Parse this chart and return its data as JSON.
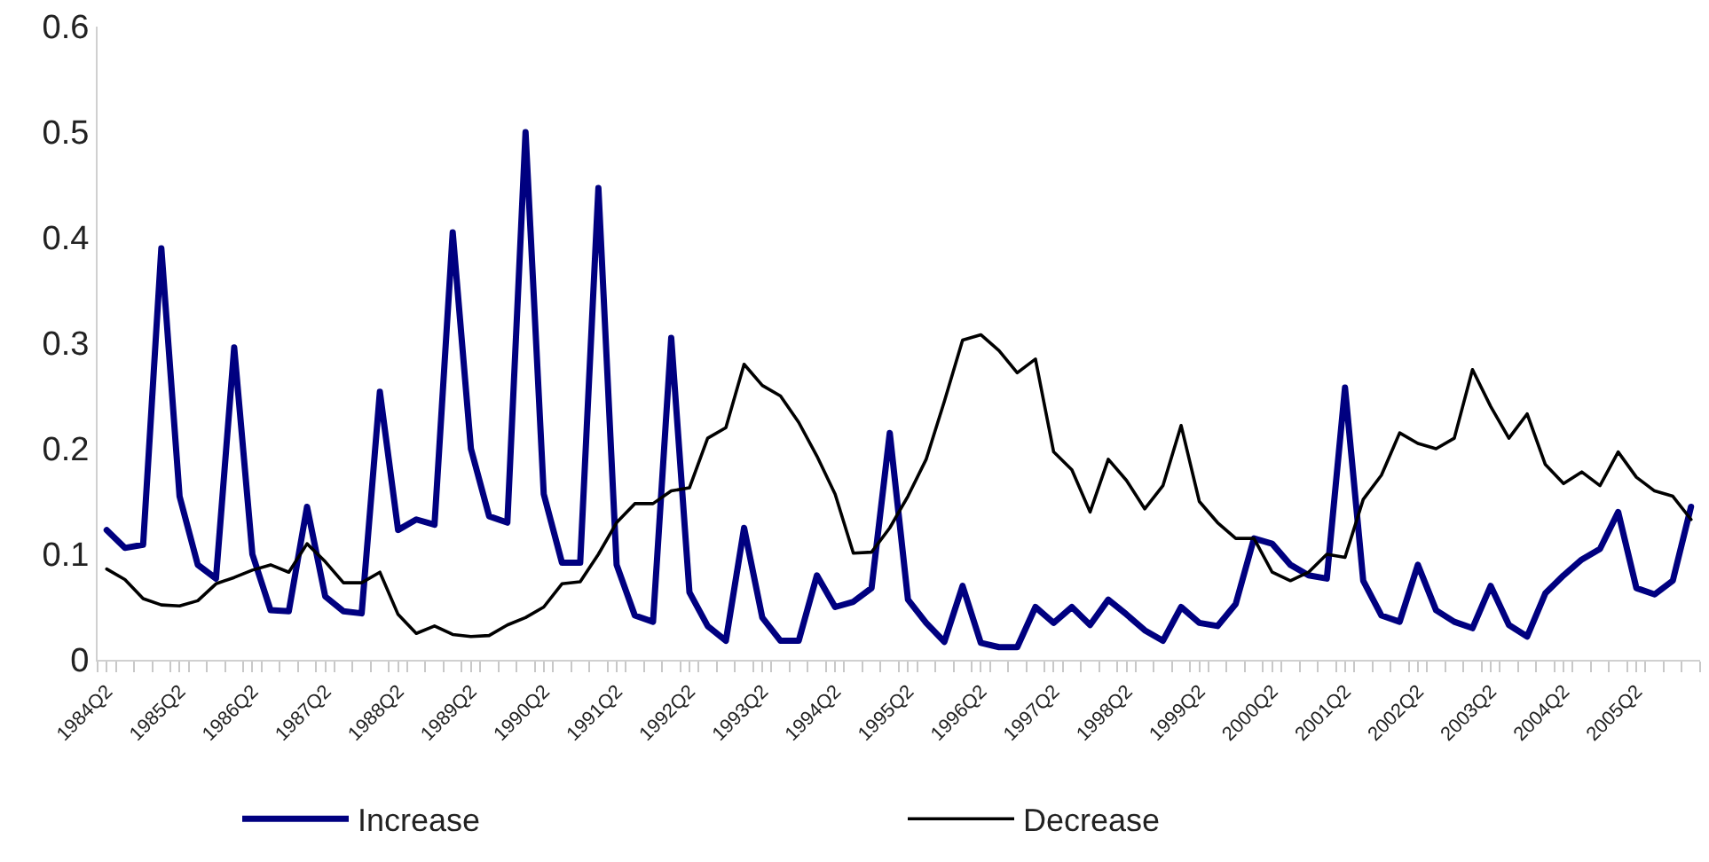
{
  "chart_data": {
    "type": "line",
    "categories": [
      "1984Q2",
      null,
      null,
      null,
      "1985Q2",
      null,
      null,
      null,
      "1986Q2",
      null,
      null,
      null,
      "1987Q2",
      null,
      null,
      null,
      "1988Q2",
      null,
      null,
      null,
      "1989Q2",
      null,
      null,
      null,
      "1990Q2",
      null,
      null,
      null,
      "1991Q2",
      null,
      null,
      null,
      "1992Q2",
      null,
      null,
      null,
      "1993Q2",
      null,
      null,
      null,
      "1994Q2",
      null,
      null,
      null,
      "1995Q2",
      null,
      null,
      null,
      "1996Q2",
      null,
      null,
      null,
      "1997Q2",
      null,
      null,
      null,
      "1998Q2",
      null,
      null,
      null,
      "1999Q2",
      null,
      null,
      null,
      "2000Q2",
      null,
      null,
      null,
      "2001Q2",
      null,
      null,
      null,
      "2002Q2",
      null,
      null,
      null,
      "2003Q2",
      null,
      null,
      null,
      "2004Q2",
      null,
      null,
      null,
      "2005Q2",
      null,
      null,
      null
    ],
    "series": [
      {
        "name": "Increase",
        "color": "#000080",
        "values": [
          0.123,
          0.106,
          0.109,
          0.39,
          0.155,
          0.09,
          0.077,
          0.296,
          0.1,
          0.047,
          0.046,
          0.145,
          0.06,
          0.046,
          0.044,
          0.254,
          0.123,
          0.133,
          0.128,
          0.405,
          0.2,
          0.136,
          0.13,
          0.5,
          0.157,
          0.092,
          0.092,
          0.447,
          0.09,
          0.042,
          0.036,
          0.305,
          0.064,
          0.032,
          0.018,
          0.125,
          0.04,
          0.018,
          0.018,
          0.08,
          0.05,
          0.055,
          0.068,
          0.215,
          0.057,
          0.035,
          0.017,
          0.07,
          0.016,
          0.012,
          0.012,
          0.05,
          0.035,
          0.05,
          0.033,
          0.057,
          0.043,
          0.028,
          0.018,
          0.05,
          0.035,
          0.032,
          0.053,
          0.115,
          0.11,
          0.09,
          0.08,
          0.077,
          0.258,
          0.075,
          0.042,
          0.036,
          0.09,
          0.047,
          0.036,
          0.03,
          0.07,
          0.033,
          0.022,
          0.063,
          0.08,
          0.095,
          0.105,
          0.14,
          0.068,
          0.062,
          0.075,
          0.145
        ]
      },
      {
        "name": "Decrease",
        "color": "#000000",
        "values": [
          0.086,
          0.076,
          0.058,
          0.052,
          0.051,
          0.056,
          0.072,
          0.078,
          0.085,
          0.09,
          0.083,
          0.11,
          0.093,
          0.073,
          0.073,
          0.083,
          0.043,
          0.025,
          0.032,
          0.024,
          0.022,
          0.023,
          0.033,
          0.04,
          0.05,
          0.072,
          0.074,
          0.1,
          0.13,
          0.148,
          0.148,
          0.16,
          0.163,
          0.21,
          0.22,
          0.28,
          0.26,
          0.25,
          0.225,
          0.193,
          0.157,
          0.101,
          0.102,
          0.125,
          0.155,
          0.19,
          0.245,
          0.303,
          0.308,
          0.293,
          0.272,
          0.285,
          0.197,
          0.18,
          0.14,
          0.19,
          0.17,
          0.143,
          0.165,
          0.222,
          0.15,
          0.13,
          0.115,
          0.115,
          0.083,
          0.075,
          0.083,
          0.1,
          0.097,
          0.152,
          0.175,
          0.215,
          0.205,
          0.2,
          0.21,
          0.275,
          0.24,
          0.21,
          0.233,
          0.185,
          0.167,
          0.178,
          0.165,
          0.197,
          0.173,
          0.16,
          0.155,
          0.133
        ]
      }
    ],
    "ylim": [
      0,
      0.6
    ],
    "yticks": [
      0,
      0.1,
      0.2,
      0.3,
      0.4,
      0.5,
      0.6
    ],
    "legend": "bottom",
    "marker": "none",
    "line_style": "solid"
  }
}
